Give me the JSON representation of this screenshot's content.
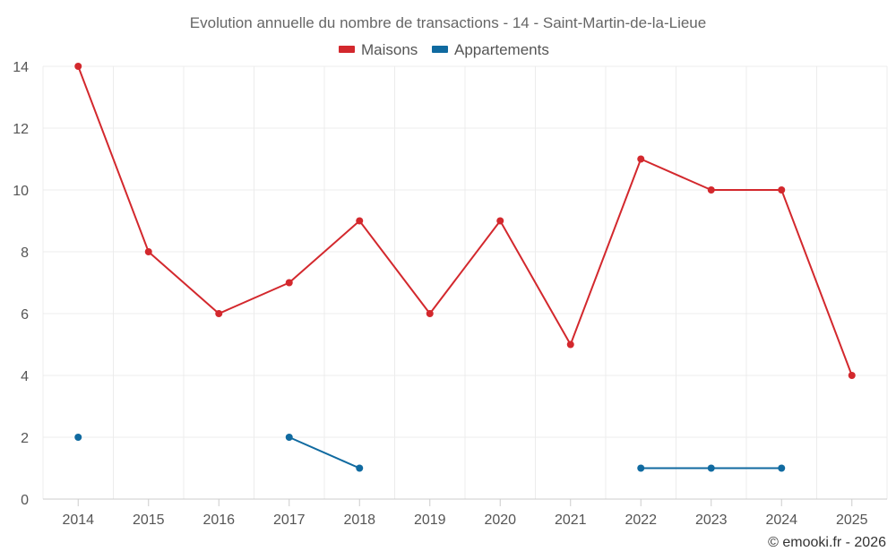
{
  "chart_data": {
    "type": "line",
    "title": "Evolution annuelle du nombre de transactions - 14 - Saint-Martin-de-la-Lieue",
    "categories": [
      "2014",
      "2015",
      "2016",
      "2017",
      "2018",
      "2019",
      "2020",
      "2021",
      "2022",
      "2023",
      "2024",
      "2025"
    ],
    "ylim": [
      0,
      14
    ],
    "yticks": [
      0,
      2,
      4,
      6,
      8,
      10,
      12,
      14
    ],
    "grid": true,
    "legend_position": "top-center",
    "series": [
      {
        "name": "Maisons",
        "color": "#d3282d",
        "values": [
          14,
          8,
          6,
          7,
          9,
          6,
          9,
          5,
          11,
          10,
          10,
          4
        ]
      },
      {
        "name": "Appartements",
        "color": "#106aa0",
        "values": [
          2,
          null,
          null,
          2,
          1,
          null,
          null,
          null,
          1,
          1,
          1,
          null
        ]
      }
    ]
  },
  "credit": "© emooki.fr - 2026"
}
